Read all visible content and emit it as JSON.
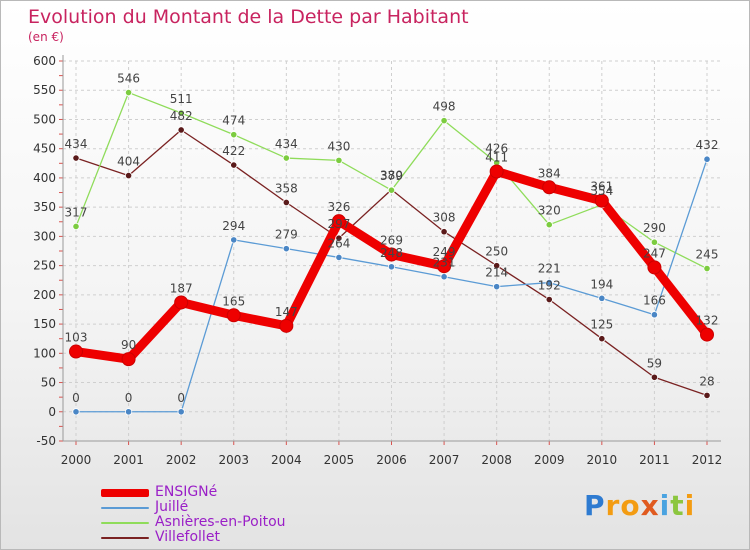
{
  "title": "Evolution du Montant de la Dette par Habitant",
  "subtitle": "(en €)",
  "brand": {
    "letters": [
      "P",
      "r",
      "o",
      "x",
      "i",
      "t",
      "i"
    ],
    "colors": [
      "#2e7bd1",
      "#f39c12",
      "#f39c12",
      "#e05a1f",
      "#4aa3e0",
      "#8cc63f",
      "#f39c12"
    ]
  },
  "chart_data": {
    "type": "line",
    "title": "Evolution du Montant de la Dette par Habitant",
    "subtitle": "(en €)",
    "xlabel": "",
    "ylabel": "",
    "ylim": [
      -50,
      600
    ],
    "yticks": [
      "-50",
      "0",
      "50",
      "100",
      "150",
      "200",
      "250",
      "300",
      "350",
      "400",
      "450",
      "500",
      "550",
      "600"
    ],
    "categories": [
      "2000",
      "2001",
      "2002",
      "2003",
      "2004",
      "2005",
      "2006",
      "2007",
      "2008",
      "2009",
      "2010",
      "2011",
      "2012"
    ],
    "grid": true,
    "legend_position": "bottom-left",
    "series": [
      {
        "name": "ENSIGNé",
        "color": "#ee0000",
        "values": [
          103,
          90,
          187,
          165,
          147,
          326,
          269,
          249,
          411,
          384,
          361,
          247,
          132
        ],
        "labels": [
          "103",
          "90",
          "187",
          "165",
          "147",
          "326",
          "269",
          "249",
          "411",
          "384",
          "361",
          "247",
          "132"
        ]
      },
      {
        "name": "Juillé",
        "color": "#5b9bd5",
        "values": [
          0,
          0,
          0,
          294,
          279,
          264,
          248,
          231,
          214,
          221,
          194,
          166,
          432
        ],
        "labels": [
          "0",
          "0",
          "0",
          "294",
          "279",
          "264",
          "248",
          "231",
          "214",
          "221",
          "194",
          "166",
          "432"
        ]
      },
      {
        "name": "Asnières-en-Poitou",
        "color": "#8fdc5a",
        "values": [
          317,
          546,
          511,
          474,
          434,
          430,
          379,
          498,
          426,
          320,
          354,
          290,
          245
        ],
        "labels": [
          "317",
          "546",
          "511",
          "474",
          "434",
          "430",
          "379",
          "498",
          "426",
          "320",
          "354",
          "290",
          "245"
        ]
      },
      {
        "name": "Villefollet",
        "color": "#7a2222",
        "values": [
          434,
          404,
          482,
          422,
          358,
          297,
          380,
          308,
          250,
          192,
          125,
          59,
          28
        ],
        "labels": [
          "434",
          "404",
          "482",
          "422",
          "358",
          "297",
          "380",
          "308",
          "250",
          "192",
          "125",
          "59",
          "28"
        ]
      }
    ]
  }
}
